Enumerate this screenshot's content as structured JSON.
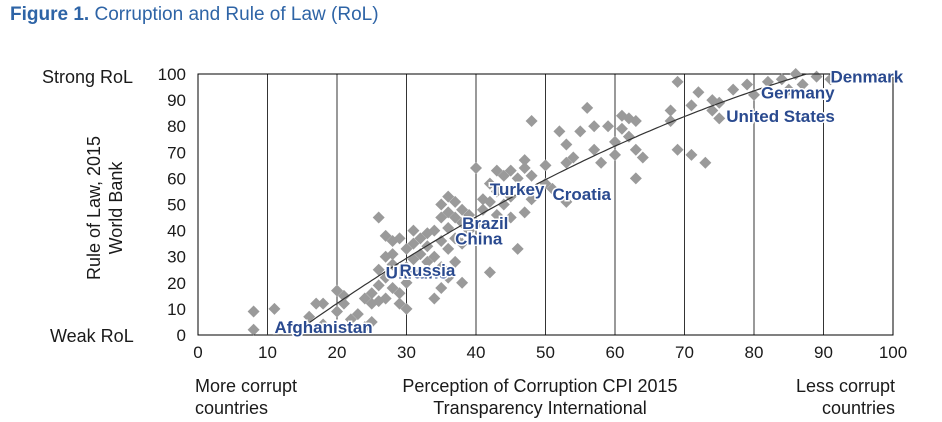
{
  "figure": {
    "number": "Figure 1.",
    "title": "Corruption and Rule of Law (RoL)"
  },
  "left_labels": {
    "top": "Strong RoL",
    "bottom": "Weak RoL"
  },
  "ylabel_lines": [
    "Rule of Law, 2015",
    "World Bank"
  ],
  "bottom_labels": {
    "left": [
      "More corrupt",
      "countries"
    ],
    "center": [
      "Perception of Corruption CPI 2015",
      "Transparency International"
    ],
    "right": [
      "Less corrupt",
      "countries"
    ]
  },
  "colors": {
    "title": "#2e64a6",
    "points": "#9a9a9a",
    "country_labels": "#2a4a8f",
    "trend": "#333333",
    "grid": "#000000"
  },
  "chart_data": {
    "type": "scatter",
    "title": "Corruption and Rule of Law (RoL)",
    "xlabel": "Perception of Corruption CPI 2015 Transparency International",
    "ylabel": "Rule of Law, 2015 World Bank",
    "xlim": [
      0,
      100
    ],
    "ylim": [
      0,
      100
    ],
    "xticks": [
      0,
      10,
      20,
      30,
      40,
      50,
      60,
      70,
      80,
      90,
      100
    ],
    "yticks": [
      0,
      10,
      20,
      30,
      40,
      50,
      60,
      70,
      80,
      90,
      100
    ],
    "grid": "vertical",
    "trendline": true,
    "annotations": [
      {
        "label": "Afghanistan",
        "x": 11,
        "y": 3
      },
      {
        "label": "Ukraine",
        "x": 27,
        "y": 24
      },
      {
        "label": "Russia",
        "x": 29,
        "y": 25
      },
      {
        "label": "Brazil",
        "x": 38,
        "y": 43
      },
      {
        "label": "China",
        "x": 37,
        "y": 37
      },
      {
        "label": "Croatia",
        "x": 51,
        "y": 54
      },
      {
        "label": "Turkey",
        "x": 42,
        "y": 56
      },
      {
        "label": "Germany",
        "x": 81,
        "y": 93
      },
      {
        "label": "United States",
        "x": 76,
        "y": 84
      },
      {
        "label": "Denmark",
        "x": 91,
        "y": 99
      }
    ],
    "points": [
      [
        8,
        9
      ],
      [
        8,
        2
      ],
      [
        11,
        10
      ],
      [
        16,
        7
      ],
      [
        17,
        12
      ],
      [
        18,
        12
      ],
      [
        18,
        4
      ],
      [
        20,
        17
      ],
      [
        20,
        9
      ],
      [
        21,
        15
      ],
      [
        21,
        12
      ],
      [
        22,
        6
      ],
      [
        23,
        8
      ],
      [
        24,
        14
      ],
      [
        24,
        3
      ],
      [
        25,
        16
      ],
      [
        25,
        12
      ],
      [
        25,
        5
      ],
      [
        26,
        45
      ],
      [
        26,
        25
      ],
      [
        26,
        19
      ],
      [
        26,
        13
      ],
      [
        27,
        38
      ],
      [
        27,
        30
      ],
      [
        27,
        22
      ],
      [
        27,
        14
      ],
      [
        28,
        36
      ],
      [
        28,
        31
      ],
      [
        28,
        27
      ],
      [
        28,
        18
      ],
      [
        29,
        37
      ],
      [
        29,
        24
      ],
      [
        29,
        16
      ],
      [
        29,
        12
      ],
      [
        30,
        33
      ],
      [
        30,
        26
      ],
      [
        30,
        20
      ],
      [
        30,
        10
      ],
      [
        31,
        40
      ],
      [
        31,
        35
      ],
      [
        31,
        29
      ],
      [
        32,
        37
      ],
      [
        32,
        31
      ],
      [
        32,
        24
      ],
      [
        33,
        39
      ],
      [
        33,
        34
      ],
      [
        33,
        28
      ],
      [
        34,
        14
      ],
      [
        34,
        40
      ],
      [
        34,
        30
      ],
      [
        35,
        50
      ],
      [
        35,
        45
      ],
      [
        35,
        36
      ],
      [
        35,
        26
      ],
      [
        35,
        18
      ],
      [
        36,
        53
      ],
      [
        36,
        47
      ],
      [
        36,
        41
      ],
      [
        36,
        33
      ],
      [
        36,
        22
      ],
      [
        37,
        51
      ],
      [
        37,
        45
      ],
      [
        37,
        37
      ],
      [
        37,
        28
      ],
      [
        38,
        48
      ],
      [
        38,
        43
      ],
      [
        38,
        35
      ],
      [
        38,
        20
      ],
      [
        39,
        46
      ],
      [
        39,
        40
      ],
      [
        40,
        64
      ],
      [
        40,
        42
      ],
      [
        41,
        52
      ],
      [
        41,
        48
      ],
      [
        42,
        58
      ],
      [
        42,
        51
      ],
      [
        42,
        24
      ],
      [
        43,
        63
      ],
      [
        43,
        55
      ],
      [
        43,
        46
      ],
      [
        44,
        61
      ],
      [
        44,
        50
      ],
      [
        45,
        63
      ],
      [
        45,
        53
      ],
      [
        45,
        45
      ],
      [
        46,
        60
      ],
      [
        46,
        33
      ],
      [
        47,
        67
      ],
      [
        47,
        64
      ],
      [
        47,
        47
      ],
      [
        48,
        82
      ],
      [
        48,
        61
      ],
      [
        48,
        52
      ],
      [
        50,
        65
      ],
      [
        50,
        58
      ],
      [
        51,
        56
      ],
      [
        52,
        78
      ],
      [
        53,
        73
      ],
      [
        53,
        66
      ],
      [
        53,
        51
      ],
      [
        54,
        68
      ],
      [
        55,
        78
      ],
      [
        56,
        87
      ],
      [
        57,
        80
      ],
      [
        57,
        71
      ],
      [
        58,
        66
      ],
      [
        59,
        80
      ],
      [
        60,
        74
      ],
      [
        60,
        69
      ],
      [
        61,
        84
      ],
      [
        61,
        79
      ],
      [
        62,
        83
      ],
      [
        62,
        76
      ],
      [
        63,
        82
      ],
      [
        63,
        71
      ],
      [
        63,
        60
      ],
      [
        64,
        68
      ],
      [
        68,
        86
      ],
      [
        68,
        82
      ],
      [
        69,
        97
      ],
      [
        69,
        71
      ],
      [
        71,
        88
      ],
      [
        71,
        69
      ],
      [
        72,
        93
      ],
      [
        73,
        66
      ],
      [
        74,
        90
      ],
      [
        74,
        86
      ],
      [
        75,
        89
      ],
      [
        75,
        83
      ],
      [
        77,
        94
      ],
      [
        79,
        96
      ],
      [
        80,
        92
      ],
      [
        82,
        97
      ],
      [
        84,
        98
      ],
      [
        85,
        94
      ],
      [
        86,
        100
      ],
      [
        87,
        96
      ],
      [
        89,
        99
      ],
      [
        91,
        98
      ]
    ]
  }
}
